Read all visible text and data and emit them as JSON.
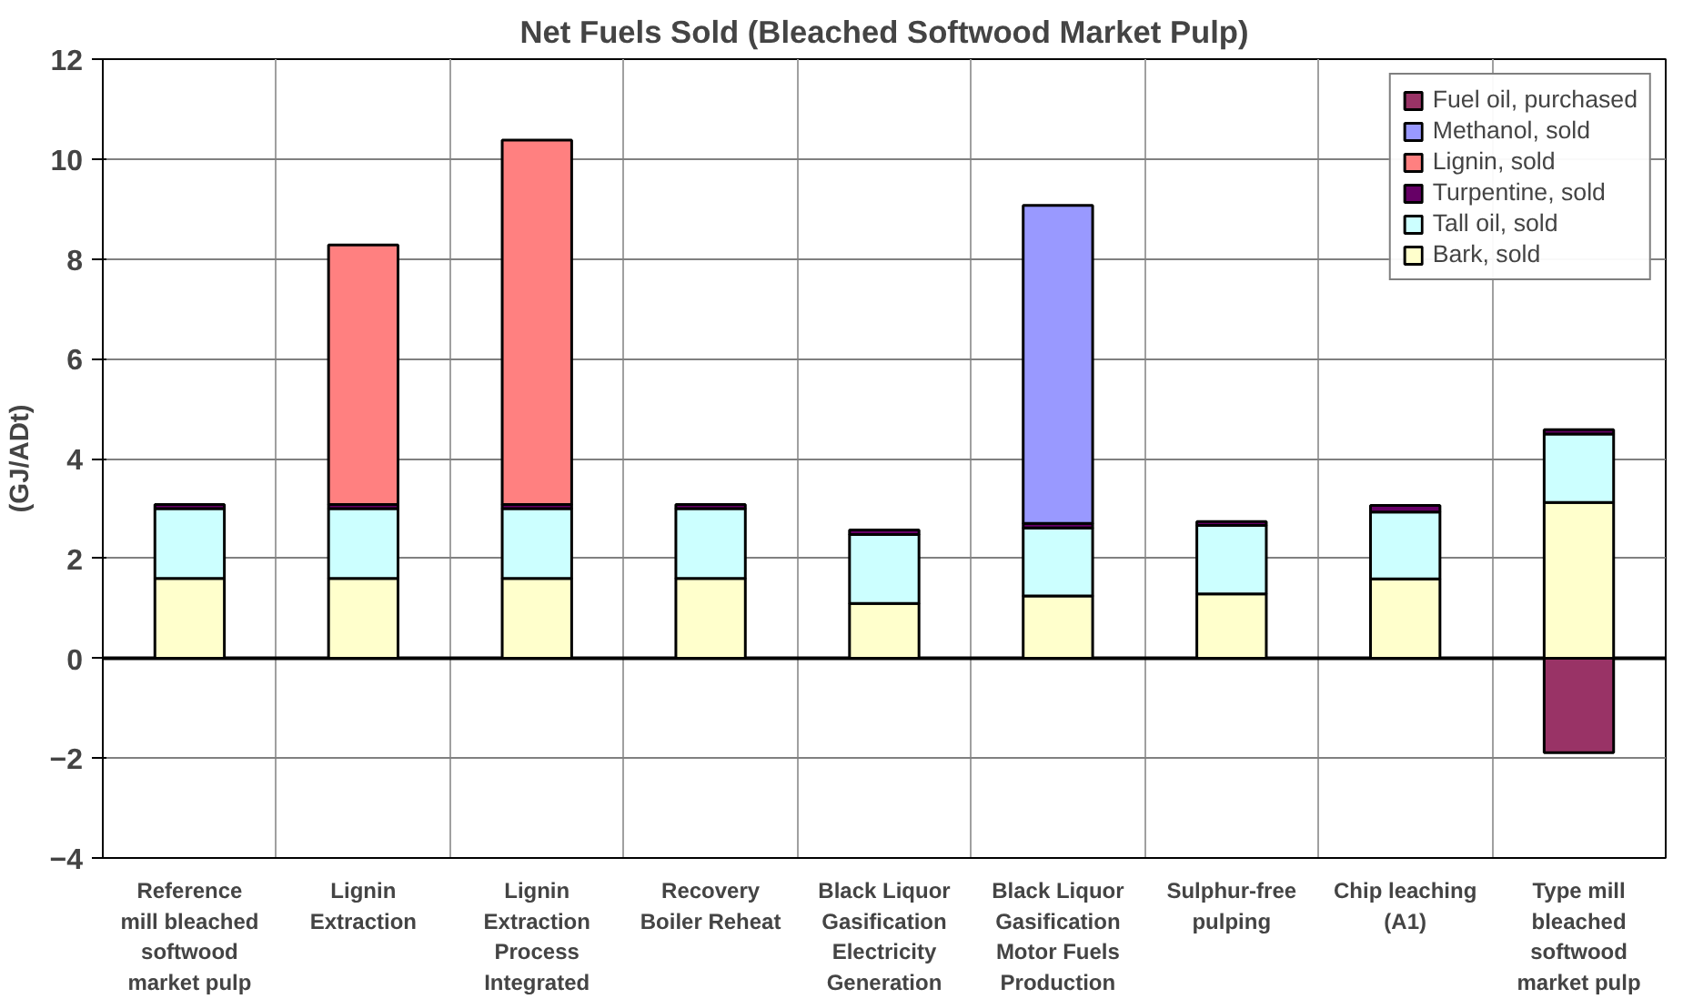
{
  "chart_data": {
    "type": "bar",
    "title": "Net Fuels Sold (Bleached Softwood Market Pulp)",
    "ylabel": "(GJ/ADt)",
    "categories": [
      "Reference\nmill bleached\nsoftwood\nmarket pulp",
      "Lignin\nExtraction",
      "Lignin\nExtraction\nProcess\nIntegrated",
      "Recovery\nBoiler Reheat",
      "Black Liquor\nGasification\nElectricity\nGeneration",
      "Black Liquor\nGasification\nMotor Fuels\nProduction",
      "Sulphur-free\npulping",
      "Chip leaching\n(A1)",
      "Type mill\nbleached\nsoftwood\nmarket pulp"
    ],
    "stacked": true,
    "ylim": [
      -4,
      12
    ],
    "yticks": [
      -4,
      -2,
      0,
      2,
      4,
      6,
      8,
      10,
      12
    ],
    "grid": true,
    "legend": "top right",
    "series": [
      {
        "name": "Bark, sold",
        "color": "#ffffcc",
        "values": [
          1.6,
          1.6,
          1.6,
          1.6,
          1.1,
          1.25,
          1.29,
          1.59,
          3.12
        ]
      },
      {
        "name": "Tall oil, sold",
        "color": "#ccffff",
        "values": [
          1.4,
          1.4,
          1.4,
          1.4,
          1.38,
          1.36,
          1.37,
          1.34,
          1.37
        ]
      },
      {
        "name": "Turpentine, sold",
        "color": "#660066",
        "values": [
          0.08,
          0.08,
          0.08,
          0.08,
          0.09,
          0.09,
          0.08,
          0.13,
          0.09
        ]
      },
      {
        "name": "Lignin, sold",
        "color": "#ff8080",
        "values": [
          null,
          5.2,
          7.3,
          null,
          null,
          null,
          null,
          null,
          null
        ]
      },
      {
        "name": "Methanol, sold",
        "color": "#9999ff",
        "values": [
          null,
          null,
          null,
          null,
          null,
          6.37,
          null,
          null,
          null
        ]
      },
      {
        "name": "Fuel oil, purchased",
        "color": "#993366",
        "values": [
          null,
          null,
          null,
          null,
          null,
          null,
          null,
          null,
          -1.89
        ]
      }
    ]
  }
}
